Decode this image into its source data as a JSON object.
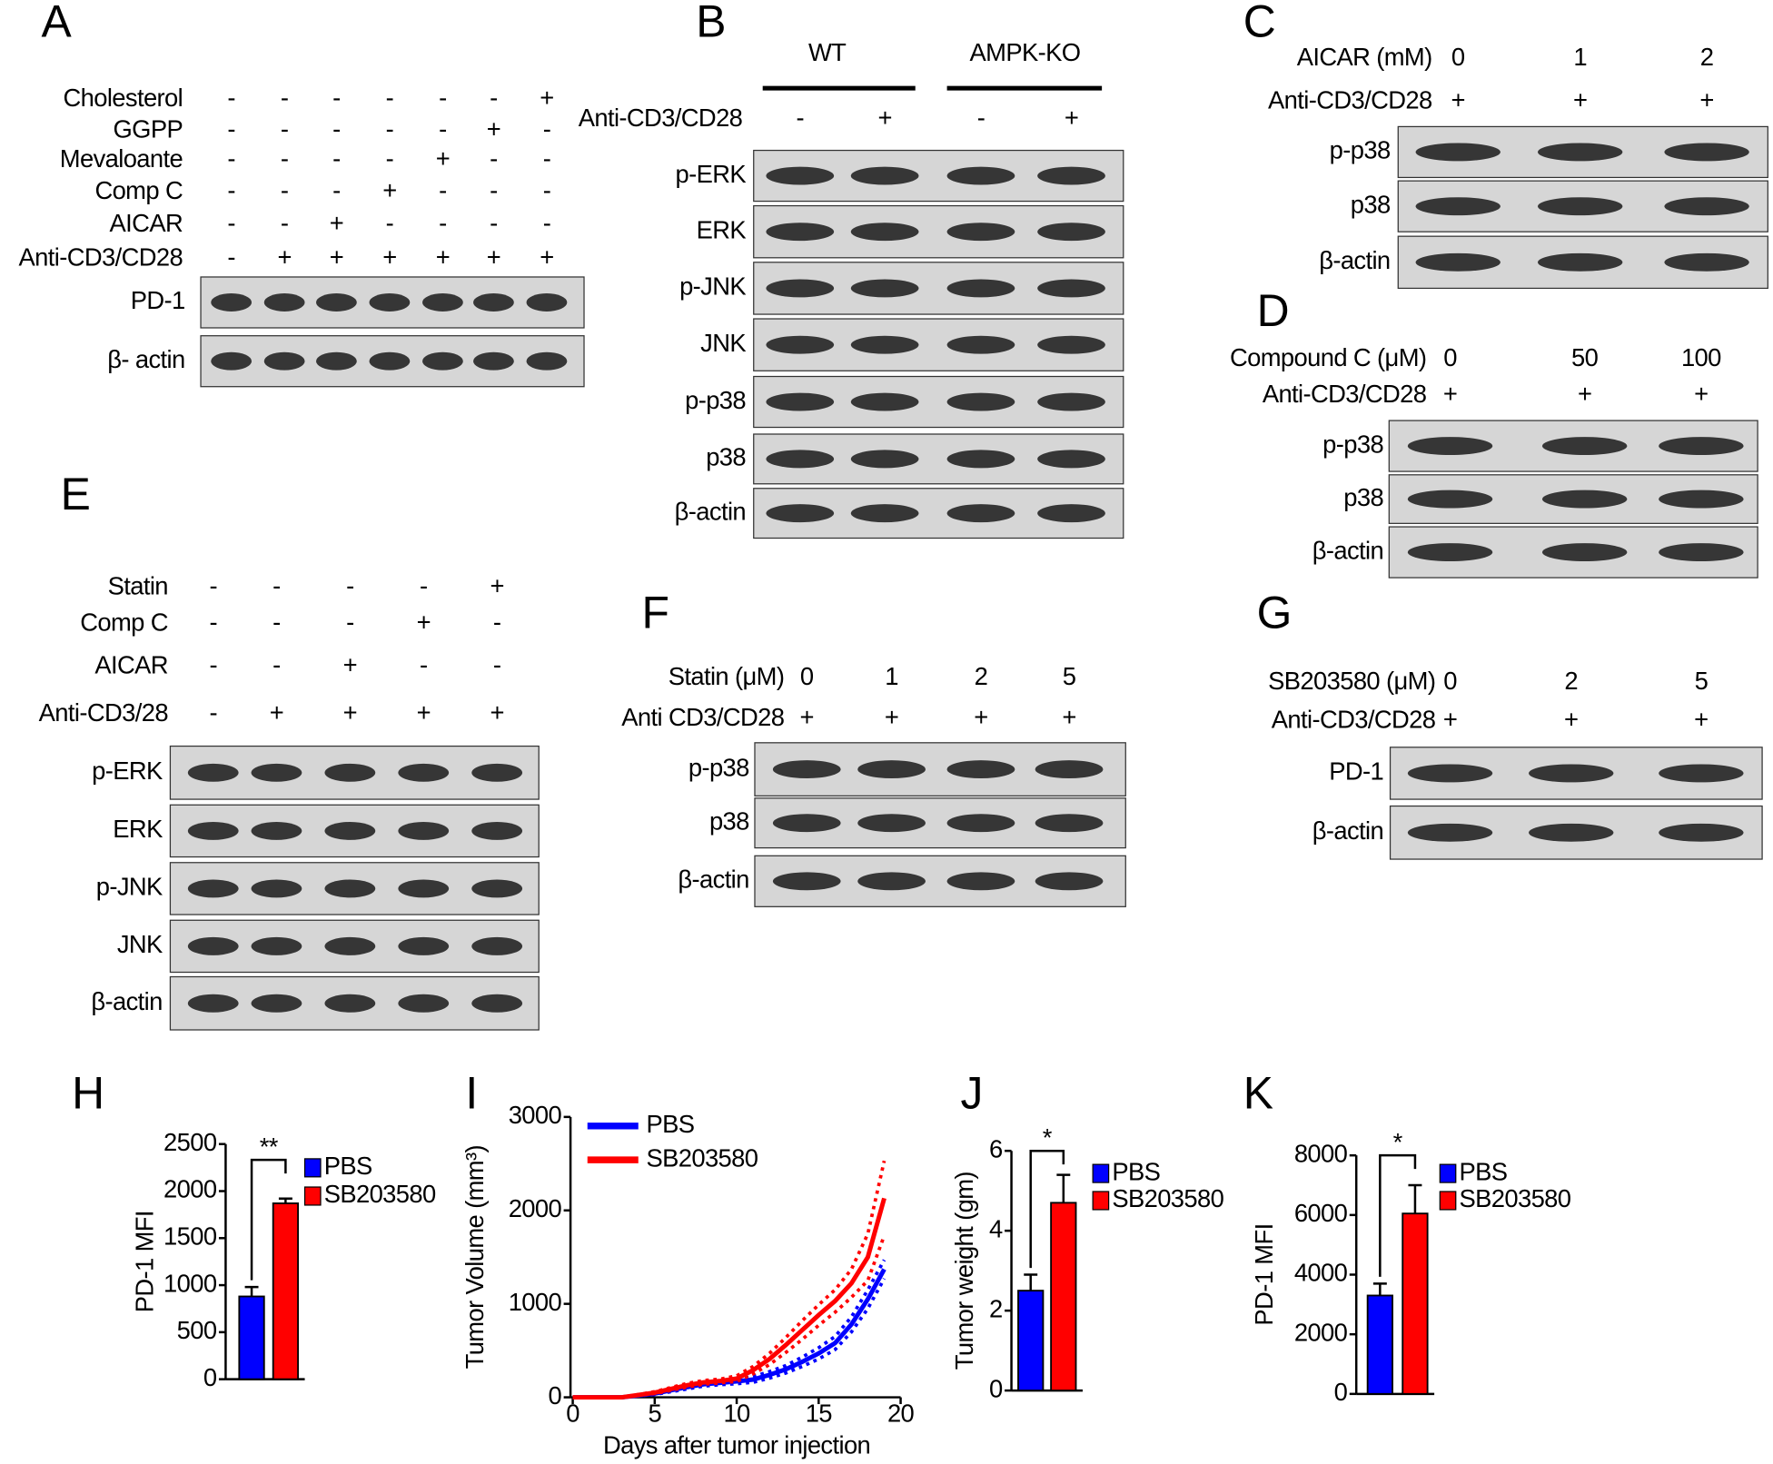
{
  "panels": [
    {
      "label": "A",
      "conditions": [
        {
          "label": "Cholesterol",
          "values": [
            "-",
            "-",
            "-",
            "-",
            "-",
            "-",
            "+"
          ]
        },
        {
          "label": "GGPP",
          "values": [
            "-",
            "-",
            "-",
            "-",
            "-",
            "+",
            "-"
          ]
        },
        {
          "label": "Mevaloante",
          "values": [
            "-",
            "-",
            "-",
            "-",
            "+",
            "-",
            "-"
          ]
        },
        {
          "label": "Comp C",
          "values": [
            "-",
            "-",
            "-",
            "+",
            "-",
            "-",
            "-"
          ]
        },
        {
          "label": "AICAR",
          "values": [
            "-",
            "-",
            "+",
            "-",
            "-",
            "-",
            "-"
          ]
        },
        {
          "label": "Anti-CD3/CD28",
          "values": [
            "-",
            "+",
            "+",
            "+",
            "+",
            "+",
            "+"
          ]
        }
      ],
      "blots": [
        "PD-1",
        "β- actin"
      ]
    },
    {
      "label": "B",
      "groups": [
        "WT",
        "AMPK-KO"
      ],
      "conditions": [
        {
          "label": "Anti-CD3/CD28",
          "values": [
            "-",
            "+",
            "-",
            "+"
          ]
        }
      ],
      "blots": [
        "p-ERK",
        "ERK",
        "p-JNK",
        "JNK",
        "p-p38",
        "p38",
        "β-actin"
      ]
    },
    {
      "label": "C",
      "conditions": [
        {
          "label": "AICAR (mM)",
          "values": [
            "0",
            "1",
            "2"
          ]
        },
        {
          "label": "Anti-CD3/CD28",
          "values": [
            "+",
            "+",
            "+"
          ]
        }
      ],
      "blots": [
        "p-p38",
        "p38",
        "β-actin"
      ]
    },
    {
      "label": "D",
      "conditions": [
        {
          "label": "Compound C (μM)",
          "values": [
            "0",
            "50",
            "100"
          ]
        },
        {
          "label": "Anti-CD3/CD28",
          "values": [
            "+",
            "+",
            "+"
          ]
        }
      ],
      "blots": [
        "p-p38",
        "p38",
        "β-actin"
      ]
    },
    {
      "label": "E",
      "conditions": [
        {
          "label": "Statin",
          "values": [
            "-",
            "-",
            "-",
            "-",
            "+"
          ]
        },
        {
          "label": "Comp C",
          "values": [
            "-",
            "-",
            "-",
            "+",
            "-"
          ]
        },
        {
          "label": "AICAR",
          "values": [
            "-",
            "-",
            "+",
            "-",
            "-"
          ]
        },
        {
          "label": "Anti-CD3/28",
          "values": [
            "-",
            "+",
            "+",
            "+",
            "+"
          ]
        }
      ],
      "blots": [
        "p-ERK",
        "ERK",
        "p-JNK",
        "JNK",
        "β-actin"
      ]
    },
    {
      "label": "F",
      "conditions": [
        {
          "label": "Statin (μM)",
          "values": [
            "0",
            "1",
            "2",
            "5"
          ]
        },
        {
          "label": "Anti CD3/CD28",
          "values": [
            "+",
            "+",
            "+",
            "+"
          ]
        }
      ],
      "blots": [
        "p-p38",
        "p38",
        "β-actin"
      ]
    },
    {
      "label": "G",
      "conditions": [
        {
          "label": "SB203580 (μM)",
          "values": [
            "0",
            "2",
            "5"
          ]
        },
        {
          "label": "Anti-CD3/CD28",
          "values": [
            "+",
            "+",
            "+"
          ]
        }
      ],
      "blots": [
        "PD-1",
        "β-actin"
      ]
    }
  ],
  "chart_data": [
    {
      "type": "bar",
      "label": "H",
      "ylabel": "PD-1 MFI",
      "ylim": [
        0,
        2500
      ],
      "yticks": [
        0,
        500,
        1000,
        1500,
        2000,
        2500
      ],
      "annotation": "**",
      "series": [
        {
          "name": "PBS",
          "color": "#0000ff",
          "values": [
            880
          ],
          "errors": [
            100
          ]
        },
        {
          "name": "SB203580",
          "color": "#ff0000",
          "values": [
            1870
          ],
          "errors": [
            50
          ]
        }
      ]
    },
    {
      "type": "line",
      "label": "I",
      "ylabel": "Tumor Volume (mm³)",
      "xlabel": "Days after tumor injection",
      "xlim": [
        0,
        20
      ],
      "xticks": [
        0,
        5,
        10,
        15,
        20
      ],
      "ylim": [
        0,
        3000
      ],
      "yticks": [
        0,
        1000,
        2000,
        3000
      ],
      "x": [
        0,
        3,
        5,
        7,
        8,
        9,
        10,
        11,
        12,
        13,
        14,
        15,
        16,
        17,
        18,
        19
      ],
      "series": [
        {
          "name": "PBS",
          "color": "#0000ff",
          "values": [
            0,
            0,
            40,
            110,
            140,
            155,
            170,
            190,
            240,
            300,
            380,
            470,
            580,
            780,
            1050,
            1370
          ],
          "errors": [
            0,
            0,
            10,
            20,
            20,
            20,
            25,
            30,
            35,
            40,
            50,
            60,
            70,
            80,
            100,
            100
          ]
        },
        {
          "name": "SB203580",
          "color": "#ff0000",
          "values": [
            0,
            0,
            50,
            130,
            160,
            175,
            200,
            290,
            410,
            560,
            720,
            880,
            1030,
            1220,
            1500,
            2130
          ],
          "errors": [
            0,
            0,
            10,
            20,
            20,
            20,
            30,
            40,
            60,
            80,
            100,
            110,
            120,
            150,
            250,
            400
          ]
        }
      ]
    },
    {
      "type": "bar",
      "label": "J",
      "ylabel": "Tumor weight (gm)",
      "ylim": [
        0,
        6
      ],
      "yticks": [
        0,
        2,
        4,
        6
      ],
      "annotation": "*",
      "series": [
        {
          "name": "PBS",
          "color": "#0000ff",
          "values": [
            2.5
          ],
          "errors": [
            0.4
          ]
        },
        {
          "name": "SB203580",
          "color": "#ff0000",
          "values": [
            4.7
          ],
          "errors": [
            0.7
          ]
        }
      ]
    },
    {
      "type": "bar",
      "label": "K",
      "ylabel": "PD-1 MFI",
      "ylim": [
        0,
        8000
      ],
      "yticks": [
        0,
        2000,
        4000,
        6000,
        8000
      ],
      "annotation": "*",
      "series": [
        {
          "name": "PBS",
          "color": "#0000ff",
          "values": [
            3300
          ],
          "errors": [
            400
          ]
        },
        {
          "name": "SB203580",
          "color": "#ff0000",
          "values": [
            6050
          ],
          "errors": [
            950
          ]
        }
      ]
    }
  ]
}
